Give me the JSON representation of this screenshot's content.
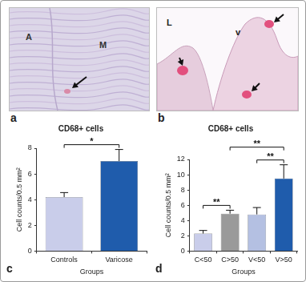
{
  "images": [
    {
      "panel": "a",
      "labels": [
        "A",
        "M"
      ]
    },
    {
      "panel": "b",
      "labels": [
        "L",
        "v"
      ]
    }
  ],
  "chart_data": [
    {
      "panel": "c",
      "type": "bar",
      "title": "CD68+ cells",
      "x_label": "Groups",
      "y_label": "Cell counts/0.5 mm²",
      "categories": [
        "Controls",
        "Varicose"
      ],
      "values": [
        4.2,
        7.0
      ],
      "errors": [
        0.35,
        0.9
      ],
      "colors": [
        "#c9cdea",
        "#1f5cac"
      ],
      "ylim": [
        0,
        8
      ],
      "yticks": [
        0,
        2,
        4,
        6,
        8
      ],
      "grid": false,
      "annotations": [
        {
          "text": "*",
          "from": "Controls",
          "to": "Varicose"
        }
      ]
    },
    {
      "panel": "d",
      "type": "bar",
      "title": "CD68+ cells",
      "x_label": "Groups",
      "y_label": "Cell counts/0.5 mm²",
      "categories": [
        "C<50",
        "C>50",
        "V<50",
        "V>50"
      ],
      "values": [
        2.3,
        4.9,
        4.8,
        9.5
      ],
      "errors": [
        0.4,
        0.45,
        0.9,
        1.8
      ],
      "colors": [
        "#c9cdea",
        "#9a9a9a",
        "#b4c0e2",
        "#1f5cac"
      ],
      "ylim": [
        0,
        12
      ],
      "yticks": [
        0,
        2,
        4,
        6,
        8,
        10,
        12
      ],
      "grid": false,
      "annotations": [
        {
          "text": "**",
          "from": "C<50",
          "to": "C>50"
        },
        {
          "text": "**",
          "from": "V<50",
          "to": "V>50"
        },
        {
          "text": "**",
          "from": "C>50",
          "to": "V>50"
        }
      ]
    }
  ]
}
